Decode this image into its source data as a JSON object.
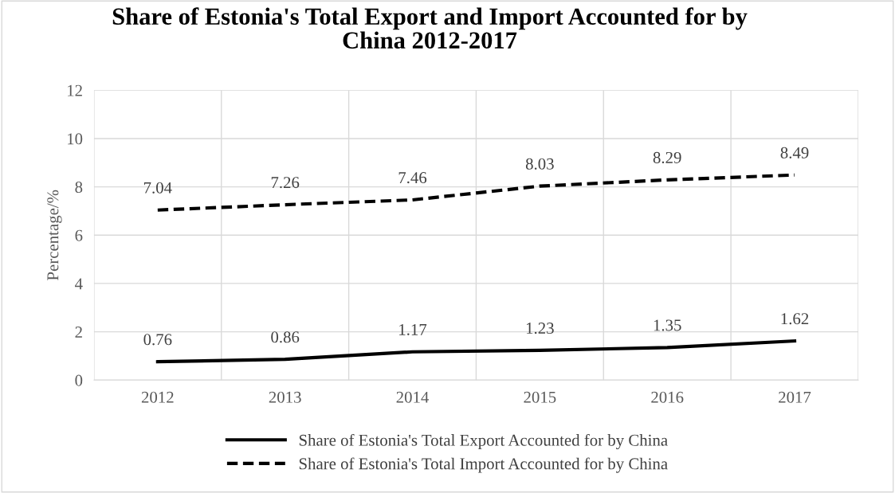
{
  "chart_data": {
    "type": "line",
    "title": "Share of Estonia's Total Export and Import Accounted for by\nChina 2012-2017",
    "ylabel": "Percentage/%",
    "categories": [
      "2012",
      "2013",
      "2014",
      "2015",
      "2016",
      "2017"
    ],
    "series": [
      {
        "name": "Share of Estonia's Total Export Accounted for by China",
        "color": "#000000",
        "line_style": "solid",
        "values": [
          0.76,
          0.86,
          1.17,
          1.23,
          1.35,
          1.62
        ]
      },
      {
        "name": "Share of Estonia's Total Import Accounted for by China",
        "color": "#000000",
        "line_style": "dashed",
        "values": [
          7.04,
          7.26,
          7.46,
          8.03,
          8.29,
          8.49
        ]
      }
    ],
    "ylim": [
      0,
      12
    ],
    "yticks": [
      0,
      2,
      4,
      6,
      8,
      10,
      12
    ],
    "grid": true,
    "legend": "bottom",
    "data_labels": true,
    "marker": "none"
  }
}
